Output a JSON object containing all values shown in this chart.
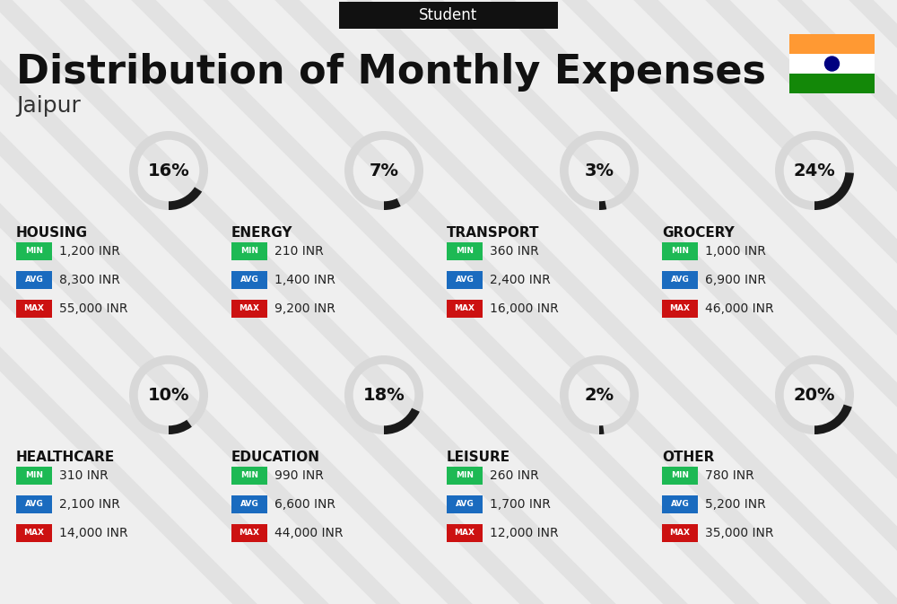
{
  "title": "Distribution of Monthly Expenses",
  "subtitle": "Student",
  "city": "Jaipur",
  "background_color": "#efefef",
  "header_bg": "#111111",
  "header_text_color": "#ffffff",
  "title_color": "#111111",
  "city_color": "#333333",
  "categories": [
    {
      "name": "HOUSING",
      "percent": 16,
      "min": "1,200 INR",
      "avg": "8,300 INR",
      "max": "55,000 INR",
      "row": 0,
      "col": 0
    },
    {
      "name": "ENERGY",
      "percent": 7,
      "min": "210 INR",
      "avg": "1,400 INR",
      "max": "9,200 INR",
      "row": 0,
      "col": 1
    },
    {
      "name": "TRANSPORT",
      "percent": 3,
      "min": "360 INR",
      "avg": "2,400 INR",
      "max": "16,000 INR",
      "row": 0,
      "col": 2
    },
    {
      "name": "GROCERY",
      "percent": 24,
      "min": "1,000 INR",
      "avg": "6,900 INR",
      "max": "46,000 INR",
      "row": 0,
      "col": 3
    },
    {
      "name": "HEALTHCARE",
      "percent": 10,
      "min": "310 INR",
      "avg": "2,100 INR",
      "max": "14,000 INR",
      "row": 1,
      "col": 0
    },
    {
      "name": "EDUCATION",
      "percent": 18,
      "min": "990 INR",
      "avg": "6,600 INR",
      "max": "44,000 INR",
      "row": 1,
      "col": 1
    },
    {
      "name": "LEISURE",
      "percent": 2,
      "min": "260 INR",
      "avg": "1,700 INR",
      "max": "12,000 INR",
      "row": 1,
      "col": 2
    },
    {
      "name": "OTHER",
      "percent": 20,
      "min": "780 INR",
      "avg": "5,200 INR",
      "max": "35,000 INR",
      "row": 1,
      "col": 3
    }
  ],
  "min_color": "#1db954",
  "avg_color": "#1a6bbf",
  "max_color": "#cc1111",
  "label_text_color": "#ffffff",
  "value_text_color": "#222222",
  "circle_bg": "#d8d8d8",
  "circle_arc_color": "#1a1a1a",
  "category_name_color": "#111111",
  "stripe_color": "#d8d8d8",
  "india_flag_orange": "#FF9933",
  "india_flag_green": "#138808",
  "india_flag_white": "#FFFFFF",
  "india_flag_blue": "#000080"
}
